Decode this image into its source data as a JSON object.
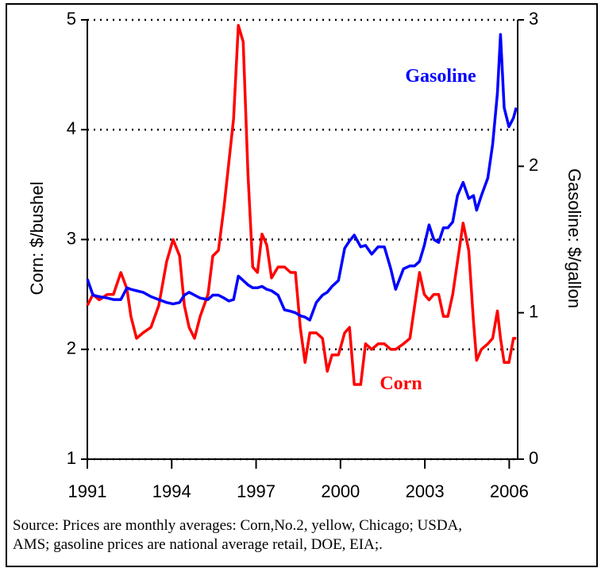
{
  "chart_data": {
    "type": "line",
    "ylabel": "Corn: $/bushel",
    "y2label": "Gasoline: $/gallon",
    "source": [
      "Source: Prices are monthly averages: Corn,No.2, yellow, Chicago; USDA,",
      "AMS; gasoline prices are national average retail, DOE, EIA;."
    ],
    "annotations": [
      {
        "text": "Gasoline",
        "color": "#0000ff"
      },
      {
        "text": "Corn",
        "color": "#ff0000"
      }
    ],
    "xlim": [
      1991,
      2006.3
    ],
    "xticks": [
      1991,
      1994,
      1997,
      2000,
      2003,
      2006
    ],
    "ylim": [
      1,
      5
    ],
    "yticks": [
      1,
      2,
      3,
      4,
      5
    ],
    "y2lim": [
      0,
      3
    ],
    "y2ticks": [
      0,
      1,
      2,
      3
    ],
    "grid": true,
    "x": [
      1991.0,
      1991.2,
      1991.42,
      1991.71,
      1991.93,
      1992.19,
      1992.41,
      1992.55,
      1992.75,
      1992.98,
      1993.26,
      1993.54,
      1993.82,
      1994.05,
      1994.28,
      1994.45,
      1994.62,
      1994.81,
      1995.01,
      1995.29,
      1995.46,
      1995.66,
      1995.86,
      1996.03,
      1996.2,
      1996.37,
      1996.54,
      1996.71,
      1996.88,
      1997.05,
      1997.21,
      1997.38,
      1997.55,
      1997.78,
      1998.01,
      1998.23,
      1998.4,
      1998.57,
      1998.74,
      1998.91,
      1999.14,
      1999.36,
      1999.53,
      1999.7,
      1999.93,
      2000.15,
      2000.32,
      2000.49,
      2000.72,
      2000.89,
      2001.11,
      2001.34,
      2001.56,
      2001.79,
      2001.96,
      2002.24,
      2002.47,
      2002.64,
      2002.81,
      2002.98,
      2003.15,
      2003.32,
      2003.49,
      2003.66,
      2003.82,
      2003.99,
      2004.16,
      2004.36,
      2004.56,
      2004.73,
      2004.84,
      2005.01,
      2005.24,
      2005.41,
      2005.58,
      2005.69,
      2005.82,
      2005.99,
      2006.15,
      2006.25
    ],
    "series": [
      {
        "name": "Corn",
        "color": "#ff0000",
        "values": [
          2.4,
          2.5,
          2.45,
          2.5,
          2.5,
          2.7,
          2.55,
          2.3,
          2.1,
          2.15,
          2.2,
          2.4,
          2.8,
          3.0,
          2.85,
          2.4,
          2.2,
          2.1,
          2.3,
          2.5,
          2.85,
          2.9,
          3.3,
          3.7,
          4.1,
          4.95,
          4.8,
          3.6,
          2.75,
          2.7,
          3.05,
          2.95,
          2.65,
          2.75,
          2.75,
          2.7,
          2.7,
          2.2,
          1.88,
          2.15,
          2.15,
          2.1,
          1.8,
          1.95,
          1.95,
          2.15,
          2.2,
          1.68,
          1.68,
          2.05,
          2.0,
          2.05,
          2.05,
          2.0,
          2.0,
          2.05,
          2.1,
          2.4,
          2.7,
          2.5,
          2.45,
          2.5,
          2.5,
          2.3,
          2.3,
          2.5,
          2.8,
          3.15,
          2.9,
          2.25,
          1.9,
          2.0,
          2.05,
          2.1,
          2.35,
          2.1,
          1.88,
          1.88,
          2.1,
          2.1
        ]
      },
      {
        "name": "Gasoline",
        "color": "#0000ff",
        "axis": "y2",
        "values": [
          1.23,
          1.12,
          1.11,
          1.1,
          1.09,
          1.09,
          1.17,
          1.16,
          1.15,
          1.14,
          1.11,
          1.09,
          1.07,
          1.06,
          1.07,
          1.12,
          1.14,
          1.12,
          1.1,
          1.09,
          1.12,
          1.12,
          1.1,
          1.08,
          1.09,
          1.25,
          1.22,
          1.19,
          1.17,
          1.17,
          1.18,
          1.16,
          1.15,
          1.12,
          1.02,
          1.01,
          1.0,
          0.98,
          0.97,
          0.95,
          1.07,
          1.12,
          1.14,
          1.18,
          1.22,
          1.44,
          1.49,
          1.53,
          1.45,
          1.46,
          1.4,
          1.45,
          1.45,
          1.3,
          1.16,
          1.3,
          1.32,
          1.32,
          1.35,
          1.46,
          1.6,
          1.5,
          1.48,
          1.58,
          1.58,
          1.62,
          1.8,
          1.89,
          1.78,
          1.8,
          1.7,
          1.8,
          1.92,
          2.15,
          2.5,
          2.9,
          2.4,
          2.27,
          2.33,
          2.4
        ]
      }
    ]
  }
}
